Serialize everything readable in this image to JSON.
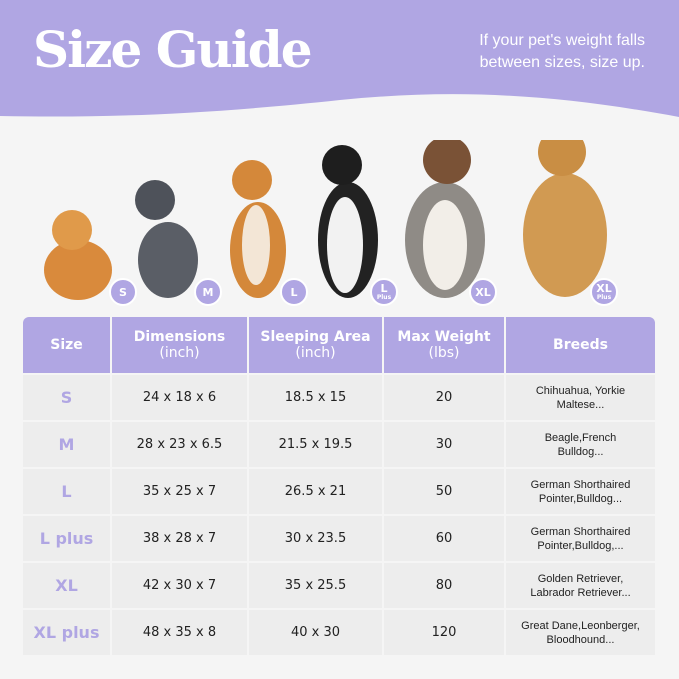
{
  "header": {
    "title": "Size Guide",
    "tip_line1": "If your pet's weight falls",
    "tip_line2": "between sizes, size up."
  },
  "colors": {
    "accent": "#b0a6e3",
    "background": "#f5f5f5",
    "cell": "#ededed"
  },
  "dogs": [
    {
      "breed_icon": "pomeranian",
      "badge": "S",
      "badge_sub": ""
    },
    {
      "breed_icon": "french-bulldog",
      "badge": "M",
      "badge_sub": ""
    },
    {
      "breed_icon": "shiba-inu",
      "badge": "L",
      "badge_sub": ""
    },
    {
      "breed_icon": "border-collie",
      "badge": "L",
      "badge_sub": "Plus"
    },
    {
      "breed_icon": "australian-shepherd",
      "badge": "XL",
      "badge_sub": ""
    },
    {
      "breed_icon": "golden-retriever",
      "badge": "XL",
      "badge_sub": "Plus"
    }
  ],
  "table": {
    "headers": [
      {
        "l1": "Size",
        "l2": ""
      },
      {
        "l1": "Dimensions",
        "l2": "(inch)"
      },
      {
        "l1": "Sleeping Area",
        "l2": "(inch)"
      },
      {
        "l1": "Max Weight",
        "l2": "(lbs)"
      },
      {
        "l1": "Breeds",
        "l2": ""
      }
    ],
    "rows": [
      {
        "size": "S",
        "dimensions": "24 x 18 x 6",
        "sleeping": "18.5 x 15",
        "weight": "20",
        "breeds1": "Chihuahua, Yorkie",
        "breeds2": "Maltese..."
      },
      {
        "size": "M",
        "dimensions": "28 x 23 x 6.5",
        "sleeping": "21.5 x 19.5",
        "weight": "30",
        "breeds1": "Beagle,French",
        "breeds2": "Bulldog..."
      },
      {
        "size": "L",
        "dimensions": "35 x 25 x 7",
        "sleeping": "26.5 x 21",
        "weight": "50",
        "breeds1": "German Shorthaired",
        "breeds2": "Pointer,Bulldog..."
      },
      {
        "size": "L plus",
        "dimensions": "38 x 28 x 7",
        "sleeping": "30 x 23.5",
        "weight": "60",
        "breeds1": "German Shorthaired",
        "breeds2": "Pointer,Bulldog,..."
      },
      {
        "size": "XL",
        "dimensions": "42 x 30 x 7",
        "sleeping": "35 x 25.5",
        "weight": "80",
        "breeds1": "Golden Retriever,",
        "breeds2": "Labrador Retriever..."
      },
      {
        "size": "XL plus",
        "dimensions": "48 x 35 x 8",
        "sleeping": "40 x 30",
        "weight": "120",
        "breeds1": "Great Dane,Leonberger,",
        "breeds2": "Bloodhound..."
      }
    ]
  }
}
